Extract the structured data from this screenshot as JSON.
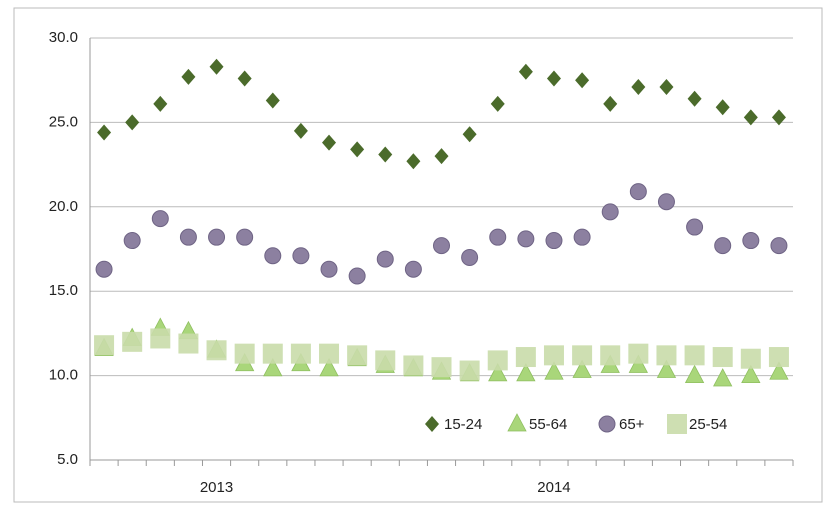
{
  "chart_data": {
    "type": "scatter",
    "categories": [
      null,
      null,
      null,
      null,
      "2013",
      null,
      null,
      null,
      null,
      null,
      null,
      null,
      null,
      null,
      null,
      null,
      "2014",
      null,
      null,
      null,
      null,
      null,
      null,
      null,
      null
    ],
    "series": [
      {
        "name": "15-24",
        "color": "#4b6b2b",
        "marker": "diamond",
        "values": [
          24.4,
          25.0,
          26.1,
          27.7,
          28.3,
          27.6,
          26.3,
          24.5,
          23.8,
          23.4,
          23.1,
          22.7,
          23.0,
          24.3,
          26.1,
          28.0,
          27.6,
          27.5,
          26.1,
          27.1,
          27.1,
          26.4,
          25.9,
          25.3,
          25.3
        ]
      },
      {
        "name": "55-64",
        "color": "#a9d67a",
        "marker": "triangle",
        "values": [
          11.6,
          12.2,
          12.8,
          12.6,
          11.5,
          10.7,
          10.4,
          10.7,
          10.4,
          11.0,
          10.6,
          10.4,
          10.2,
          10.1,
          10.1,
          10.1,
          10.2,
          10.3,
          10.6,
          10.6,
          10.3,
          10.0,
          9.8,
          10.0,
          10.2
        ]
      },
      {
        "name": "65+",
        "color": "#8c80a0",
        "marker": "circle",
        "values": [
          16.3,
          18.0,
          19.3,
          18.2,
          18.2,
          18.2,
          17.1,
          17.1,
          16.3,
          15.9,
          16.9,
          16.3,
          17.7,
          17.0,
          18.2,
          18.1,
          18.0,
          18.2,
          19.7,
          20.9,
          20.3,
          18.8,
          17.7,
          18.0,
          17.7
        ]
      },
      {
        "name": "25-54",
        "color": "#c9dcaa",
        "marker": "square",
        "values": [
          11.8,
          12.0,
          12.2,
          11.9,
          11.5,
          11.3,
          11.3,
          11.3,
          11.3,
          11.2,
          10.9,
          10.6,
          10.5,
          10.3,
          10.9,
          11.1,
          11.2,
          11.2,
          11.2,
          11.3,
          11.2,
          11.2,
          11.1,
          11.0,
          11.1
        ]
      }
    ],
    "ylim": [
      5,
      30
    ],
    "yticks": [
      {
        "value": 5,
        "label": "5.0"
      },
      {
        "value": 10,
        "label": "10.0"
      },
      {
        "value": 15,
        "label": "15.0"
      },
      {
        "value": 20,
        "label": "20.0"
      },
      {
        "value": 25,
        "label": "25.0"
      },
      {
        "value": 30,
        "label": "30.0"
      }
    ],
    "grid": true,
    "legend": "bottom-right"
  }
}
